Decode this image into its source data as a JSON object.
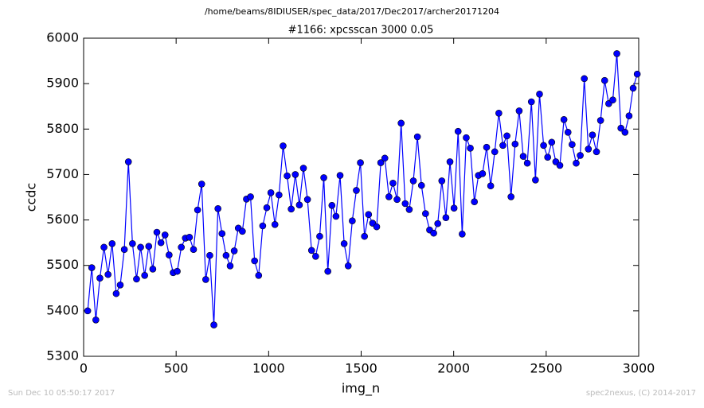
{
  "chart_data": {
    "type": "line",
    "suptitle": "/home/beams/8IDIUSER/spec_data/2017/Dec2017/archer20171204",
    "title": "#1166: xpcsscan 3000 0.05",
    "x_label": "img_n",
    "y_label": "ccdc",
    "footer_left": "Sun Dec 10 05:50:17 2017",
    "footer_right": "spec2nexus, (C) 2014-2017",
    "xlim": [
      0,
      3000
    ],
    "xticks": [
      0,
      500,
      1000,
      1500,
      2000,
      2500,
      3000
    ],
    "ylim": [
      5300,
      6000
    ],
    "yticks": [
      5300,
      5400,
      5500,
      5600,
      5700,
      5800,
      5900,
      6000
    ],
    "grid": false,
    "x": [
      22,
      44,
      66,
      88,
      110,
      132,
      154,
      176,
      198,
      220,
      242,
      264,
      286,
      308,
      330,
      352,
      374,
      396,
      418,
      440,
      462,
      484,
      506,
      528,
      550,
      572,
      594,
      616,
      638,
      660,
      682,
      704,
      726,
      748,
      770,
      792,
      814,
      836,
      858,
      880,
      902,
      924,
      946,
      968,
      990,
      1012,
      1034,
      1056,
      1078,
      1100,
      1122,
      1144,
      1166,
      1188,
      1210,
      1232,
      1254,
      1276,
      1298,
      1320,
      1342,
      1364,
      1386,
      1408,
      1430,
      1452,
      1474,
      1496,
      1518,
      1540,
      1562,
      1584,
      1606,
      1628,
      1650,
      1672,
      1694,
      1716,
      1738,
      1760,
      1782,
      1804,
      1826,
      1848,
      1870,
      1892,
      1914,
      1936,
      1958,
      1980,
      2002,
      2024,
      2046,
      2068,
      2090,
      2112,
      2134,
      2156,
      2178,
      2200,
      2222,
      2244,
      2266,
      2288,
      2310,
      2332,
      2354,
      2376,
      2398,
      2420,
      2442,
      2464,
      2486,
      2508,
      2530,
      2552,
      2574,
      2596,
      2618,
      2640,
      2662,
      2684,
      2706,
      2728,
      2750,
      2772,
      2794,
      2816,
      2838,
      2860,
      2882,
      2904,
      2926,
      2948,
      2970,
      2992
    ],
    "series": [
      {
        "color": "#0000ff",
        "values": [
          5400,
          5495,
          5380,
          5472,
          5540,
          5480,
          5548,
          5438,
          5457,
          5535,
          5728,
          5548,
          5470,
          5540,
          5478,
          5542,
          5492,
          5573,
          5550,
          5567,
          5523,
          5484,
          5487,
          5540,
          5560,
          5562,
          5535,
          5622,
          5679,
          5469,
          5522,
          5369,
          5625,
          5570,
          5522,
          5499,
          5532,
          5582,
          5575,
          5646,
          5651,
          5510,
          5478,
          5587,
          5627,
          5660,
          5590,
          5655,
          5763,
          5697,
          5624,
          5700,
          5633,
          5714,
          5645,
          5533,
          5520,
          5564,
          5693,
          5487,
          5632,
          5608,
          5698,
          5548,
          5499,
          5598,
          5665,
          5726,
          5564,
          5612,
          5593,
          5585,
          5726,
          5736,
          5651,
          5681,
          5645,
          5813,
          5636,
          5623,
          5686,
          5783,
          5676,
          5614,
          5578,
          5571,
          5592,
          5686,
          5605,
          5728,
          5626,
          5795,
          5569,
          5781,
          5758,
          5640,
          5698,
          5702,
          5760,
          5675,
          5750,
          5835,
          5764,
          5785,
          5651,
          5767,
          5840,
          5740,
          5725,
          5860,
          5688,
          5877,
          5764,
          5738,
          5771,
          5728,
          5720,
          5821,
          5793,
          5766,
          5725,
          5742,
          5911,
          5756,
          5787,
          5750,
          5819,
          5907,
          5856,
          5864,
          5966,
          5802,
          5793,
          5829,
          5890,
          5921
        ]
      }
    ]
  }
}
